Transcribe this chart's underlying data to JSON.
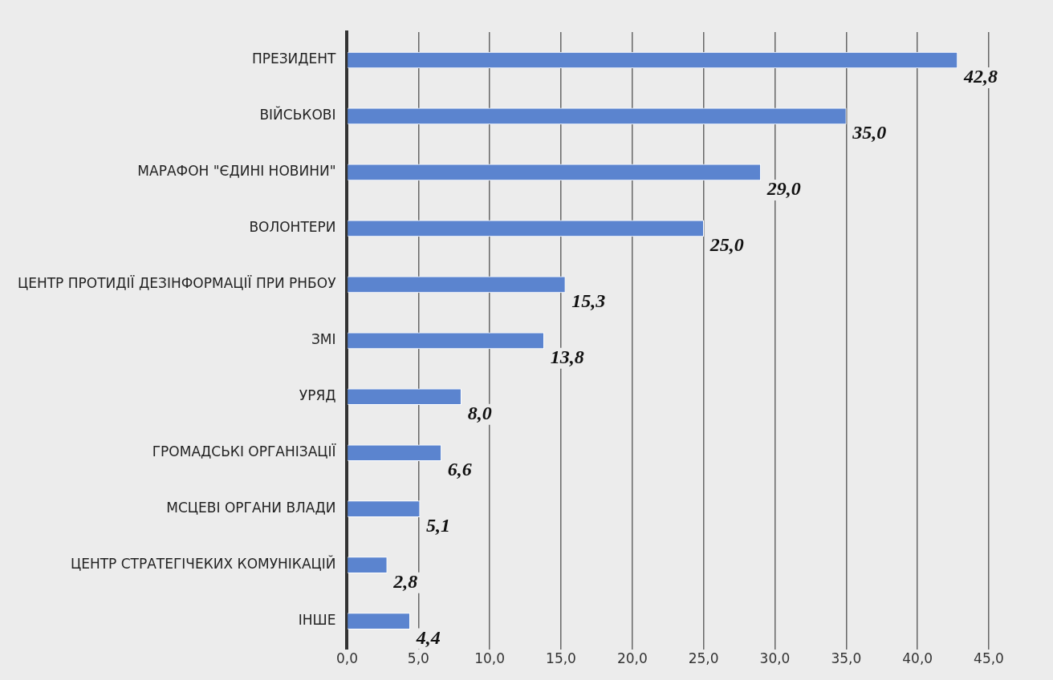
{
  "chart_data": {
    "type": "bar",
    "orientation": "horizontal",
    "categories": [
      "ПРЕЗИДЕНТ",
      "ВІЙСЬКОВІ",
      "МАРАФОН \"ЄДИНІ НОВИНИ\"",
      "ВОЛОНТЕРИ",
      "ЦЕНТР ПРОТИДІЇ ДЕЗІНФОРМАЦІЇ ПРИ РНБОУ",
      "ЗМІ",
      "УРЯД",
      "ГРОМАДСЬКІ ОРГАНІЗАЦІЇ",
      "МСЦЕВІ ОРГАНИ ВЛАДИ",
      "ЦЕНТР СТРАТЕГІЧЕКИХ КОМУНІКАЦІЙ",
      "ІНШЕ"
    ],
    "values": [
      42.8,
      35.0,
      29.0,
      25.0,
      15.3,
      13.8,
      8.0,
      6.6,
      5.1,
      2.8,
      4.4
    ],
    "value_labels": [
      "42,8",
      "35,0",
      "29,0",
      "25,0",
      "15,3",
      "13,8",
      "8,0",
      "6,6",
      "5,1",
      "2,8",
      "4,4"
    ],
    "color": "#5b84cf",
    "xlim": [
      0,
      45
    ],
    "xticks": [
      {
        "value": 0,
        "label": "0,0"
      },
      {
        "value": 5,
        "label": "5,0"
      },
      {
        "value": 10,
        "label": "10,0"
      },
      {
        "value": 15,
        "label": "15,0"
      },
      {
        "value": 20,
        "label": "20,0"
      },
      {
        "value": 25,
        "label": "25,0"
      },
      {
        "value": 30,
        "label": "30,0"
      },
      {
        "value": 35,
        "label": "35,0"
      },
      {
        "value": 40,
        "label": "40,0"
      },
      {
        "value": 45,
        "label": "45,0"
      }
    ],
    "grid": "x",
    "legend": false
  }
}
